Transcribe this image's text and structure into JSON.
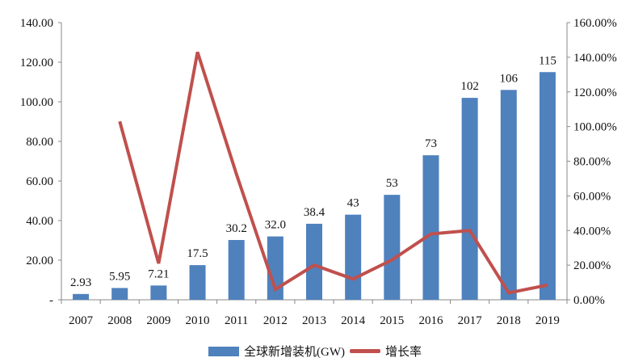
{
  "chart_data": {
    "type": "bar",
    "categories": [
      "2007",
      "2008",
      "2009",
      "2010",
      "2011",
      "2012",
      "2013",
      "2014",
      "2015",
      "2016",
      "2017",
      "2018",
      "2019"
    ],
    "series": [
      {
        "name": "全球新增装机(GW)",
        "kind": "bar",
        "axis": "left",
        "color": "#4f81bd",
        "values": [
          2.93,
          5.95,
          7.21,
          17.5,
          30.2,
          32.0,
          38.4,
          43,
          53,
          73,
          102,
          106,
          115
        ],
        "labels": [
          "2.93",
          "5.95",
          "7.21",
          "17.5",
          "30.2",
          "32.0",
          "38.4",
          "43",
          "53",
          "73",
          "102",
          "106",
          "115"
        ]
      },
      {
        "name": "增长率",
        "kind": "line",
        "axis": "right",
        "color": "#c0504d",
        "values": [
          null,
          103,
          21,
          143,
          72.6,
          6,
          20,
          12,
          23,
          38,
          40,
          4,
          8.5
        ]
      }
    ],
    "left_axis": {
      "ylim": [
        0,
        140
      ],
      "ticks": [
        "-",
        "20.00",
        "40.00",
        "60.00",
        "80.00",
        "100.00",
        "120.00",
        "140.00"
      ]
    },
    "right_axis": {
      "ylim": [
        0,
        160
      ],
      "ticks": [
        "0.00%",
        "20.00%",
        "40.00%",
        "60.00%",
        "80.00%",
        "100.00%",
        "120.00%",
        "140.00%",
        "160.00%"
      ]
    },
    "legend": {
      "placement": "bottom",
      "items": [
        "全球新增装机(GW)",
        "增长率"
      ]
    },
    "grid": false
  }
}
